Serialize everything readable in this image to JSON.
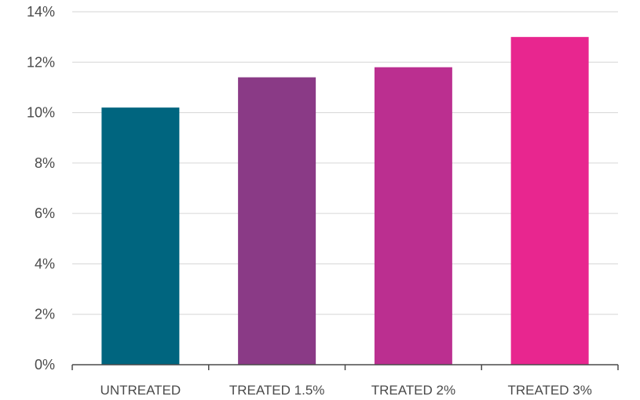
{
  "chart_data": {
    "type": "bar",
    "categories": [
      "UNTREATED",
      "TREATED 1.5%",
      "TREATED 2%",
      "TREATED 3%"
    ],
    "values": [
      10.2,
      11.4,
      11.8,
      13.0
    ],
    "colors": [
      "#00657f",
      "#8a3a86",
      "#bb2f90",
      "#e8268f"
    ],
    "ylim": [
      0,
      14
    ],
    "yticks": [
      0,
      2,
      4,
      6,
      8,
      10,
      12,
      14
    ],
    "ytick_labels": [
      "0%",
      "2%",
      "4%",
      "6%",
      "8%",
      "10%",
      "12%",
      "14%"
    ],
    "title": "",
    "xlabel": "",
    "ylabel": "",
    "grid": true,
    "legend": "none"
  }
}
